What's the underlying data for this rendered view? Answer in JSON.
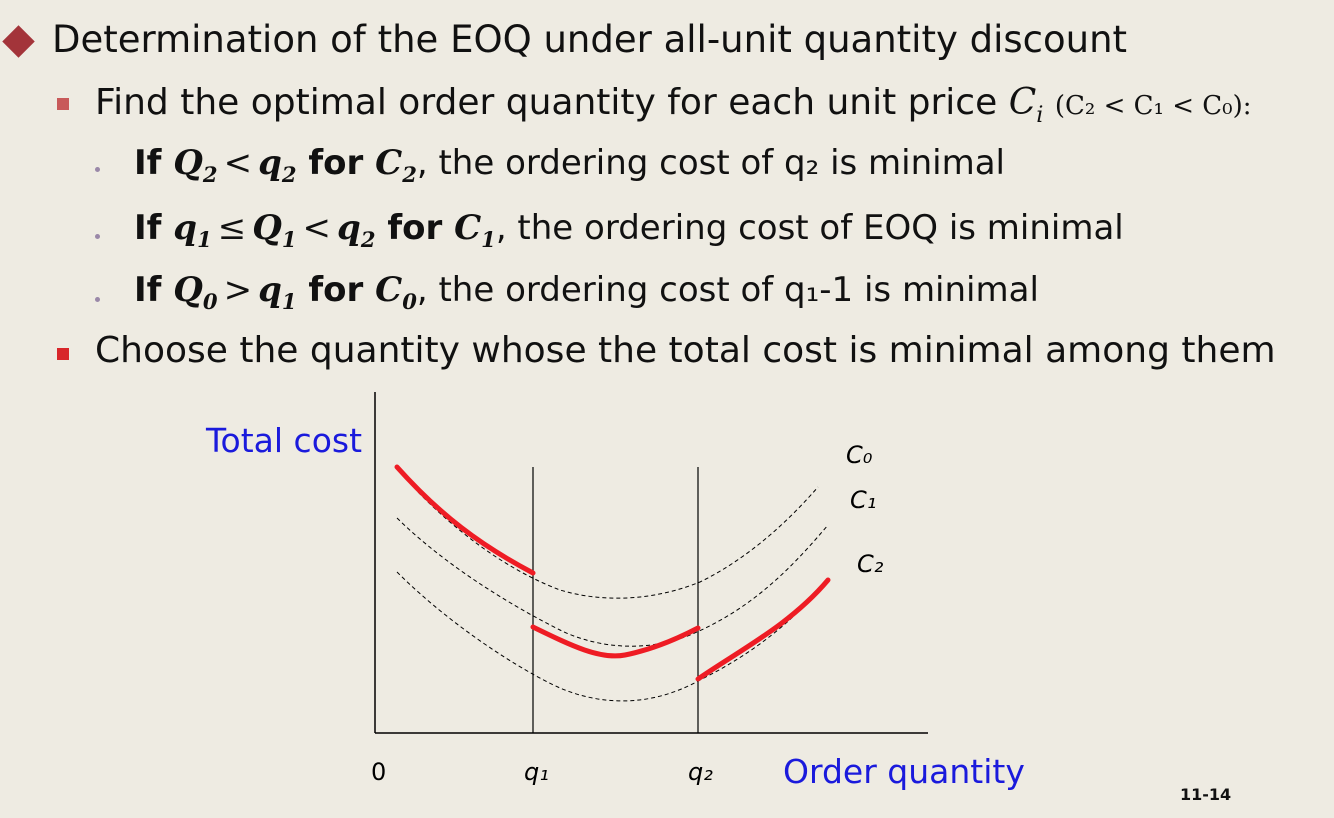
{
  "heading": "Determination of the EOQ under all-unit quantity discount",
  "point1": {
    "text": "Find the optimal order quantity for each unit price ",
    "math_var": "C",
    "math_sub": "i",
    "paren": "(C₂ < C₁ < C₀):"
  },
  "cases": [
    {
      "if": "If ",
      "lhs": "Q",
      "lhs_sub": "2",
      "op": "<",
      "rhs": "q",
      "rhs_sub": "2",
      "for": " for ",
      "c": "C",
      "c_sub": "2",
      "tail": ", the ordering cost of q₂ is minimal"
    },
    {
      "if": "If ",
      "pre": "q",
      "pre_sub": "1",
      "op1": "≤",
      "lhs": "Q",
      "lhs_sub": "1",
      "op": "<",
      "rhs": "q",
      "rhs_sub": "2",
      "for": " for ",
      "c": "C",
      "c_sub": "1",
      "tail": ", the ordering cost of EOQ is minimal"
    },
    {
      "if": "If ",
      "lhs": "Q",
      "lhs_sub": "0",
      "op": ">",
      "rhs": "q",
      "rhs_sub": "1",
      "for": " for ",
      "c": "C",
      "c_sub": "0",
      "tail": ", the ordering cost of q₁-1 is minimal"
    }
  ],
  "point2": "Choose the quantity whose the total cost is minimal among them",
  "chart": {
    "y_label": "Total cost",
    "x_label": "Order quantity",
    "origin_label": "0",
    "tick_q1": "q₁",
    "tick_q2": "q₂",
    "curve_labels": [
      "C₀",
      "C₁",
      "C₂"
    ]
  },
  "page_number": "11-14",
  "colors": {
    "diamond": "#a3343a",
    "square_l2_first": "#c85a5a",
    "square_l2_second": "#d8262a",
    "axis_label": "#1a1adc",
    "optimal_curve": "#ee1c24",
    "background": "#eeebe2"
  }
}
